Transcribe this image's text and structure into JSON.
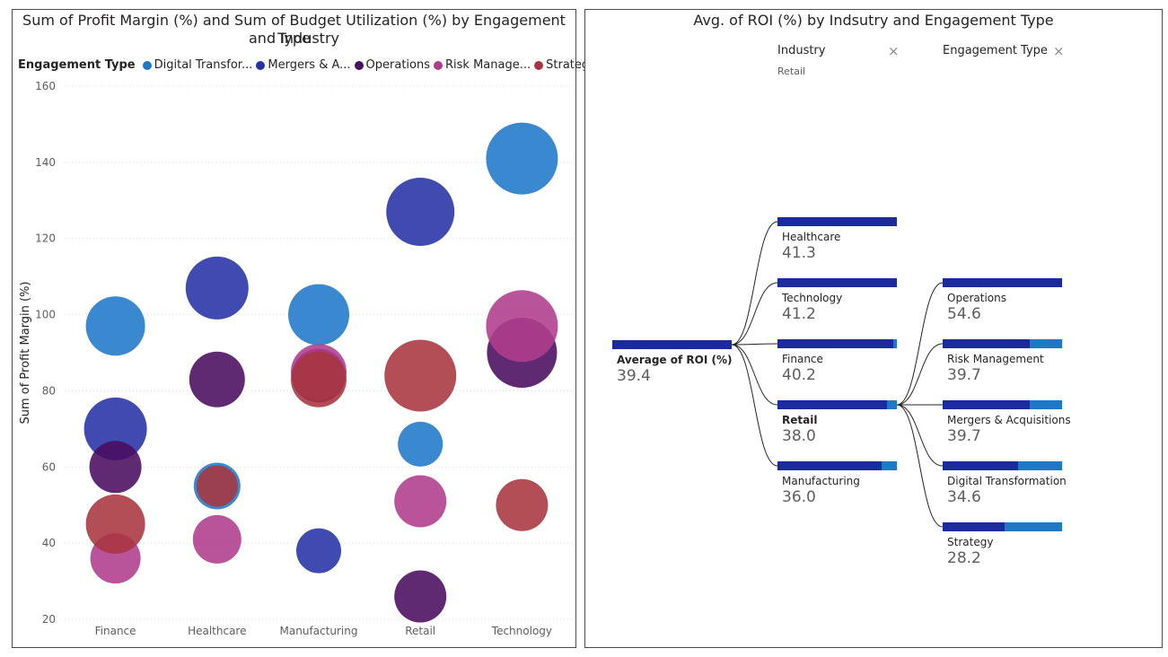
{
  "left_chart": {
    "title_line1": "Sum of Profit Margin (%) and Sum of Budget Utilization (%) by Engagement Type",
    "title_line2": "and Industry",
    "legend_title": "Engagement Type",
    "legend": [
      {
        "label": "Digital Transfor...",
        "color": "#1f77c8"
      },
      {
        "label": "Mergers & A...",
        "color": "#2432a6"
      },
      {
        "label": "Operations",
        "color": "#4a0d5f"
      },
      {
        "label": "Risk Manage...",
        "color": "#b03c8c"
      },
      {
        "label": "Strategy",
        "color": "#a83640"
      }
    ]
  },
  "chart_data": [
    {
      "type": "scatter",
      "title": "Sum of Profit Margin (%) and Sum of Budget Utilization (%) by Engagement Type and Industry",
      "xlabel": "",
      "ylabel": "Sum of Profit Margin (%)",
      "categories": [
        "Finance",
        "Healthcare",
        "Manufacturing",
        "Retail",
        "Technology"
      ],
      "ylim": [
        20,
        160
      ],
      "yticks": [
        20,
        40,
        60,
        80,
        100,
        120,
        140,
        160
      ],
      "grid": true,
      "legend_position": "top-left",
      "series": [
        {
          "name": "Digital Transformation",
          "color": "#1f77c8",
          "points": [
            {
              "x": "Finance",
              "y": 97,
              "size": 33
            },
            {
              "x": "Healthcare",
              "y": 55,
              "size": 26
            },
            {
              "x": "Manufacturing",
              "y": 100,
              "size": 34
            },
            {
              "x": "Retail",
              "y": 66,
              "size": 25
            },
            {
              "x": "Technology",
              "y": 141,
              "size": 40
            }
          ]
        },
        {
          "name": "Mergers & Acquisitions",
          "color": "#2432a6",
          "points": [
            {
              "x": "Finance",
              "y": 70,
              "size": 35
            },
            {
              "x": "Healthcare",
              "y": 107,
              "size": 35
            },
            {
              "x": "Manufacturing",
              "y": 38,
              "size": 25
            },
            {
              "x": "Retail",
              "y": 127,
              "size": 38
            }
          ]
        },
        {
          "name": "Operations",
          "color": "#4a0d5f",
          "points": [
            {
              "x": "Finance",
              "y": 60,
              "size": 29
            },
            {
              "x": "Healthcare",
              "y": 83,
              "size": 31
            },
            {
              "x": "Manufacturing",
              "y": 84,
              "size": 30
            },
            {
              "x": "Retail",
              "y": 26,
              "size": 29
            },
            {
              "x": "Technology",
              "y": 90,
              "size": 39
            }
          ]
        },
        {
          "name": "Risk Management",
          "color": "#b03c8c",
          "points": [
            {
              "x": "Finance",
              "y": 36,
              "size": 28
            },
            {
              "x": "Healthcare",
              "y": 41,
              "size": 27
            },
            {
              "x": "Manufacturing",
              "y": 85,
              "size": 31
            },
            {
              "x": "Retail",
              "y": 51,
              "size": 29
            },
            {
              "x": "Technology",
              "y": 97,
              "size": 40
            }
          ]
        },
        {
          "name": "Strategy",
          "color": "#a83640",
          "points": [
            {
              "x": "Finance",
              "y": 45,
              "size": 33
            },
            {
              "x": "Healthcare",
              "y": 55,
              "size": 23
            },
            {
              "x": "Manufacturing",
              "y": 83,
              "size": 31
            },
            {
              "x": "Retail",
              "y": 84,
              "size": 40
            },
            {
              "x": "Technology",
              "y": 50,
              "size": 29
            }
          ]
        }
      ]
    },
    {
      "type": "bar",
      "title": "Avg. of ROI (%) by Indsutry and Engagement Type",
      "root": {
        "label": "Average of ROI (%)",
        "value": 39.4
      },
      "levels": [
        {
          "header": "Industry",
          "filter": "Retail",
          "nodes": [
            {
              "label": "Healthcare",
              "value": 41.3,
              "fill": 1.0
            },
            {
              "label": "Technology",
              "value": 41.2,
              "fill": 1.0
            },
            {
              "label": "Finance",
              "value": 40.2,
              "fill": 0.97
            },
            {
              "label": "Retail",
              "value": 38.0,
              "fill": 0.92,
              "selected": true
            },
            {
              "label": "Manufacturing",
              "value": 36.0,
              "fill": 0.87
            }
          ]
        },
        {
          "header": "Engagement Type",
          "filter": "",
          "nodes": [
            {
              "label": "Operations",
              "value": 54.6,
              "fill": 1.0
            },
            {
              "label": "Risk Management",
              "value": 39.7,
              "fill": 0.73
            },
            {
              "label": "Mergers & Acquisitions",
              "value": 39.7,
              "fill": 0.73
            },
            {
              "label": "Digital Transformation",
              "value": 34.6,
              "fill": 0.63
            },
            {
              "label": "Strategy",
              "value": 28.2,
              "fill": 0.52
            }
          ]
        }
      ]
    }
  ],
  "right_chart": {
    "title": "Avg. of ROI (%) by Indsutry and Engagement Type",
    "col1_header": "Industry",
    "col1_filter": "Retail",
    "col2_header": "Engagement Type",
    "close_glyph": "×"
  },
  "colors": {
    "bar_dark": "#1b2a9e",
    "bar_light": "#1f77c8"
  }
}
